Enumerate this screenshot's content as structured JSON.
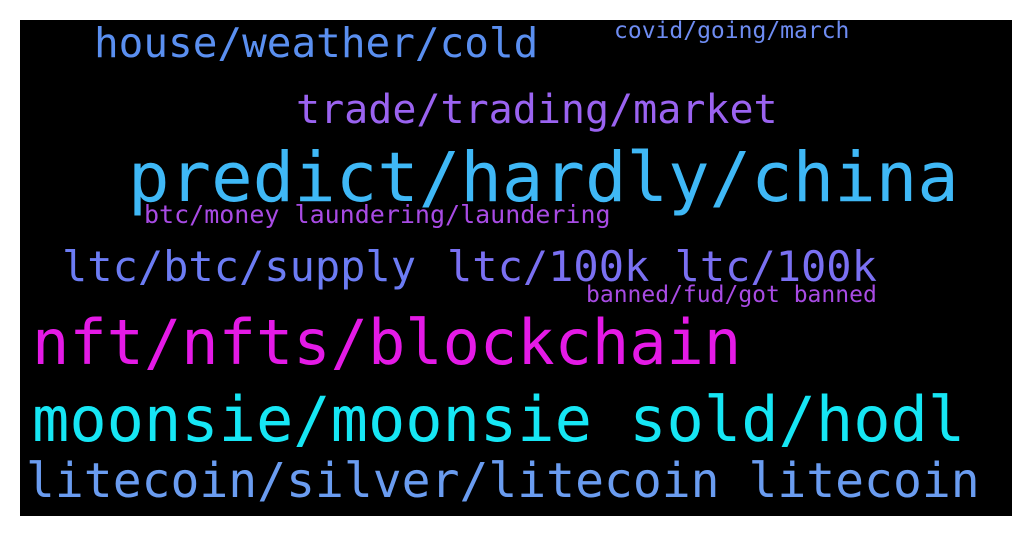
{
  "words": [
    {
      "text": "house/weather/cold",
      "color": "#5a8ff0"
    },
    {
      "text": "covid/going/march",
      "color": "#6e8cf2"
    },
    {
      "text": "trade/trading/market",
      "color": "#9a63f0"
    },
    {
      "text": "predict/hardly/china",
      "color": "#3fb8f6"
    },
    {
      "text": "btc/money laundering/laundering",
      "color": "#a84be4"
    },
    {
      "text": "ltc/btc/supply",
      "color": "#6c7cf4"
    },
    {
      "text": "ltc/100k ltc/100k",
      "color": "#7a70f2"
    },
    {
      "text": "banned/fud/got banned",
      "color": "#a84be4"
    },
    {
      "text": "nft/nfts/blockchain",
      "color": "#e41ae6"
    },
    {
      "text": "moonsie/moonsie sold/hodl",
      "color": "#16e6f4"
    },
    {
      "text": "litecoin/silver/litecoin litecoin",
      "color": "#6a9cf0"
    }
  ]
}
